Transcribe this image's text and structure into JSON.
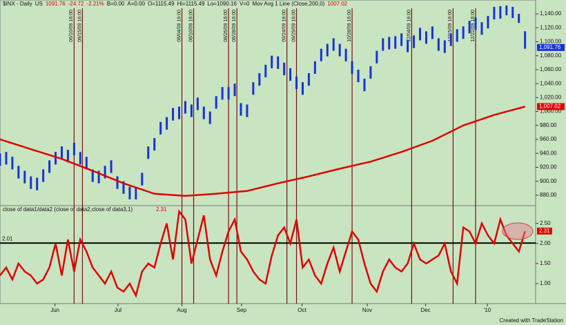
{
  "chart_data": [
    {
      "type": "ohlc",
      "header": [
        "$INX - Daily",
        "US",
        "1091.76",
        "-24.72",
        "-2.21%",
        "B=0.00",
        "A=0.00",
        "O=1115.49",
        "Hi=1115.49",
        "Lo=1090.16",
        "V=0",
        "Mov Avg 1 Line (Close,200,0)",
        "1007.02"
      ],
      "xlim": [
        0,
        171
      ],
      "xticks": [
        {
          "value": 17.8,
          "label": "Jun"
        },
        {
          "value": 38.2,
          "label": "Jul"
        },
        {
          "value": 58.9,
          "label": "Aug"
        },
        {
          "value": 78.2,
          "label": "Sep"
        },
        {
          "value": 97.8,
          "label": "Oct"
        },
        {
          "value": 118.9,
          "label": "Nov"
        },
        {
          "value": 137.8,
          "label": "Dec"
        },
        {
          "value": 157.8,
          "label": "'10"
        }
      ],
      "ylim": [
        867,
        1148
      ],
      "yticks": [
        {
          "value": 880,
          "label": "880.00"
        },
        {
          "value": 900,
          "label": "900.00"
        },
        {
          "value": 920,
          "label": "920.00"
        },
        {
          "value": 940,
          "label": "940.00"
        },
        {
          "value": 960,
          "label": "960.00"
        },
        {
          "value": 980,
          "label": "980.00"
        },
        {
          "value": 1000,
          "label": "1,000.00"
        },
        {
          "value": 1020,
          "label": "1,020.00"
        },
        {
          "value": 1040,
          "label": "1,040.00"
        },
        {
          "value": 1060,
          "label": "1,060.00"
        },
        {
          "value": 1080,
          "label": "1,080.00"
        },
        {
          "value": 1100,
          "label": "1,100.00"
        },
        {
          "value": 1120,
          "label": "1,120.00"
        },
        {
          "value": 1140,
          "label": "1,140.00"
        }
      ],
      "x": [
        0,
        2,
        4,
        6,
        8,
        10,
        12,
        14,
        16,
        18,
        20,
        22,
        24,
        26,
        28,
        30,
        32,
        34,
        36,
        38,
        40,
        42,
        44,
        46,
        48,
        50,
        52,
        54,
        56,
        58,
        60,
        62,
        64,
        66,
        68,
        70,
        72,
        74,
        76,
        78,
        80,
        82,
        84,
        86,
        88,
        90,
        92,
        94,
        96,
        98,
        100,
        102,
        104,
        106,
        108,
        110,
        112,
        114,
        116,
        118,
        120,
        122,
        124,
        126,
        128,
        130,
        132,
        134,
        136,
        138,
        140,
        142,
        144,
        146,
        148,
        150,
        152,
        154,
        156,
        158,
        160,
        162,
        164,
        166,
        168,
        170
      ],
      "high": [
        940,
        942,
        935,
        922,
        915,
        907,
        905,
        917,
        930,
        942,
        950,
        945,
        955,
        942,
        935,
        917,
        915,
        922,
        930,
        907,
        900,
        892,
        892,
        912,
        950,
        962,
        985,
        992,
        1005,
        1007,
        1015,
        1010,
        1020,
        1007,
        1000,
        1022,
        1035,
        1035,
        1040,
        1012,
        1010,
        1042,
        1055,
        1067,
        1080,
        1079,
        1070,
        1062,
        1050,
        1042,
        1055,
        1072,
        1090,
        1097,
        1105,
        1097,
        1090,
        1072,
        1060,
        1047,
        1065,
        1087,
        1105,
        1107,
        1108,
        1112,
        1103,
        1109,
        1120,
        1115,
        1122,
        1105,
        1102,
        1112,
        1118,
        1122,
        1130,
        1135,
        1128,
        1137,
        1150,
        1151,
        1152,
        1150,
        1140,
        1115
      ],
      "low": [
        922,
        924,
        917,
        904,
        897,
        889,
        887,
        899,
        912,
        924,
        932,
        927,
        937,
        924,
        917,
        899,
        897,
        904,
        912,
        889,
        882,
        874,
        874,
        894,
        932,
        944,
        967,
        974,
        987,
        989,
        997,
        992,
        1002,
        989,
        982,
        1004,
        1017,
        1017,
        1022,
        994,
        992,
        1024,
        1037,
        1049,
        1062,
        1061,
        1052,
        1044,
        1032,
        1024,
        1037,
        1054,
        1072,
        1079,
        1087,
        1079,
        1072,
        1054,
        1042,
        1029,
        1047,
        1069,
        1087,
        1089,
        1090,
        1094,
        1085,
        1091,
        1102,
        1097,
        1104,
        1087,
        1084,
        1094,
        1100,
        1104,
        1112,
        1117,
        1110,
        1119,
        1132,
        1133,
        1138,
        1134,
        1127,
        1090
      ],
      "bar_color": "#1533d6",
      "moving_average": {
        "color": "#e00000",
        "x": [
          0,
          10,
          20,
          30,
          40,
          50,
          60,
          70,
          80,
          90,
          100,
          110,
          120,
          130,
          140,
          150,
          160,
          170
        ],
        "values": [
          960,
          946,
          932,
          915,
          897,
          882,
          879,
          882,
          886,
          897,
          907,
          918,
          928,
          942,
          958,
          980,
          995,
          1007
        ]
      },
      "price_marker": {
        "value": 1091.76,
        "label": "1,091.76",
        "color": "#1533d6"
      },
      "ma_marker": {
        "value": 1007.02,
        "label": "1,007.02",
        "color": "#e00000"
      },
      "events": [
        {
          "x": 24,
          "label": "06/10/09 16:00"
        },
        {
          "x": 26.7,
          "label": "06/15/09 16:00"
        },
        {
          "x": 58.9,
          "label": "08/04/09 16:00"
        },
        {
          "x": 62.7,
          "label": "08/10/09 16:00"
        },
        {
          "x": 74,
          "label": "08/26/09 16:00"
        },
        {
          "x": 76.7,
          "label": "08/28/09 16:00"
        },
        {
          "x": 92.9,
          "label": "09/24/09 16:00"
        },
        {
          "x": 96,
          "label": "09/29/09 16:00"
        },
        {
          "x": 114,
          "label": "10/28/09 16:00"
        },
        {
          "x": 133.3,
          "label": "12/04/09 16:00"
        },
        {
          "x": 146.7,
          "label": "12/15/09 16:00"
        },
        {
          "x": 154,
          "label": "12/22/09 16:00"
        }
      ],
      "event_color": "#7a1010"
    },
    {
      "type": "line",
      "title": "close of data1/data2 (close of data2,close of data3,1)",
      "last_label": "2.31",
      "color": "#e00000",
      "xlim": [
        0,
        171
      ],
      "ylim": [
        0.5,
        2.91
      ],
      "yticks": [
        {
          "value": 1,
          "label": "1.00"
        },
        {
          "value": 1.5,
          "label": "1.50"
        },
        {
          "value": 2,
          "label": "2.00"
        },
        {
          "value": 2.5,
          "label": "2.50"
        }
      ],
      "reference": {
        "value": 2.01,
        "label": "2.01"
      },
      "x": [
        0,
        2,
        4,
        6,
        8,
        10,
        12,
        14,
        16,
        18,
        20,
        22,
        24,
        26,
        28,
        30,
        32,
        34,
        36,
        38,
        40,
        42,
        44,
        46,
        48,
        50,
        52,
        54,
        56,
        58,
        60,
        62,
        64,
        66,
        68,
        70,
        72,
        74,
        76,
        78,
        80,
        82,
        84,
        86,
        88,
        90,
        92,
        94,
        96,
        98,
        100,
        102,
        104,
        106,
        108,
        110,
        112,
        114,
        116,
        118,
        120,
        122,
        124,
        126,
        128,
        130,
        132,
        134,
        136,
        138,
        140,
        142,
        144,
        146,
        148,
        150,
        152,
        154,
        156,
        158,
        160,
        162,
        164,
        166,
        168,
        170
      ],
      "values": [
        1.2,
        1.4,
        1.1,
        1.5,
        1.3,
        1.2,
        1.0,
        1.1,
        1.4,
        2.0,
        1.2,
        2.1,
        1.3,
        2.1,
        1.8,
        1.4,
        1.2,
        1.0,
        1.3,
        0.9,
        0.8,
        1.0,
        0.7,
        1.3,
        1.5,
        1.4,
        2.0,
        2.5,
        1.6,
        2.8,
        2.6,
        1.5,
        2.1,
        2.7,
        1.6,
        1.2,
        1.8,
        2.3,
        2.6,
        1.8,
        1.6,
        1.3,
        1.1,
        1.0,
        1.7,
        2.2,
        2.4,
        2.0,
        2.6,
        1.4,
        1.6,
        1.2,
        1.0,
        1.5,
        1.9,
        1.3,
        1.8,
        2.3,
        2.1,
        1.5,
        1.0,
        0.8,
        1.3,
        1.6,
        1.4,
        1.3,
        1.5,
        2.0,
        1.6,
        1.5,
        1.6,
        1.7,
        2.0,
        1.3,
        1.0,
        2.4,
        2.3,
        2.0,
        2.5,
        2.2,
        2.0,
        2.6,
        2.2,
        2.0,
        1.8,
        2.31
      ]
    }
  ],
  "footer": "Created with TradeStation"
}
